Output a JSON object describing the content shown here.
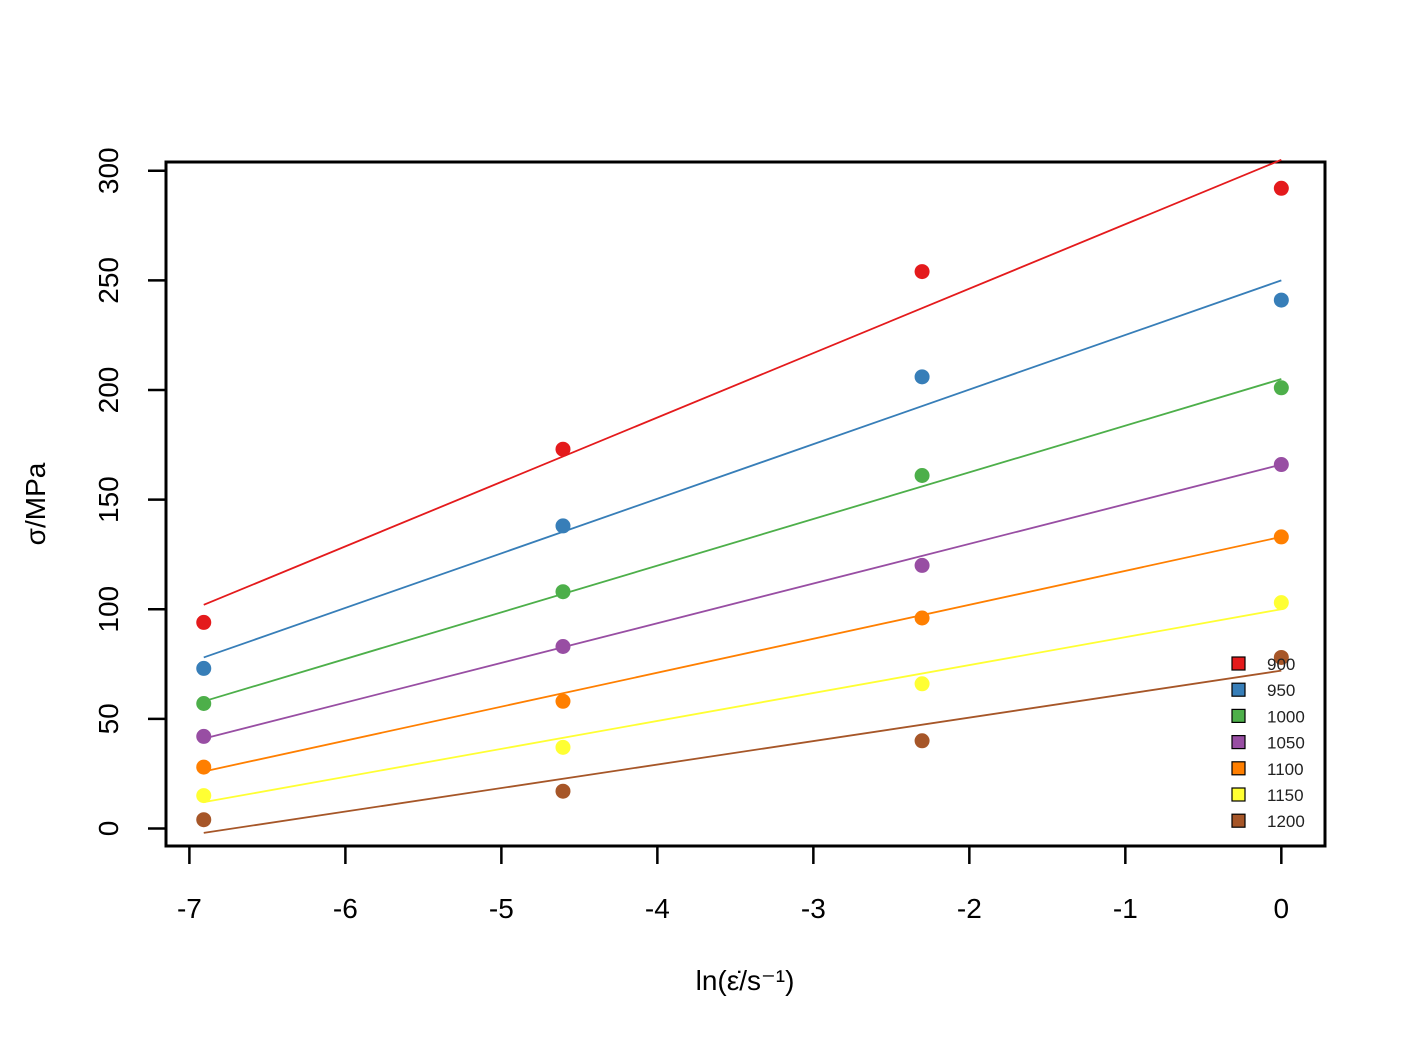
{
  "chart_data": {
    "type": "scatter",
    "xlabel": "ln(ε̇/s⁻¹)",
    "ylabel": "σ/MPa",
    "xlim": [
      -7.15,
      0.28
    ],
    "ylim": [
      -8,
      304
    ],
    "x_ticks": [
      -7,
      -6,
      -5,
      -4,
      -3,
      -2,
      -1,
      0
    ],
    "y_ticks": [
      0,
      50,
      100,
      150,
      200,
      250,
      300
    ],
    "x": [
      -6.908,
      -4.605,
      -2.303,
      0
    ],
    "legend_position": "bottom-right",
    "series": [
      {
        "name": "900",
        "color": "#e41a1c",
        "values": [
          94,
          173,
          254,
          292
        ],
        "fit": [
          102,
          305
        ]
      },
      {
        "name": "950",
        "color": "#377eb8",
        "values": [
          73,
          138,
          206,
          241
        ],
        "fit": [
          78,
          250
        ]
      },
      {
        "name": "1000",
        "color": "#4daf4a",
        "values": [
          57,
          108,
          161,
          201
        ],
        "fit": [
          58,
          205
        ]
      },
      {
        "name": "1050",
        "color": "#984ea3",
        "values": [
          42,
          83,
          120,
          166
        ],
        "fit": [
          41,
          166
        ]
      },
      {
        "name": "1100",
        "color": "#ff7f00",
        "values": [
          28,
          58,
          96,
          133
        ],
        "fit": [
          26,
          133
        ]
      },
      {
        "name": "1150",
        "color": "#ffff33",
        "values": [
          15,
          37,
          66,
          103
        ],
        "fit": [
          12,
          100
        ]
      },
      {
        "name": "1200",
        "color": "#a65628",
        "values": [
          4,
          17,
          40,
          78
        ],
        "fit": [
          -2,
          72
        ]
      }
    ]
  }
}
